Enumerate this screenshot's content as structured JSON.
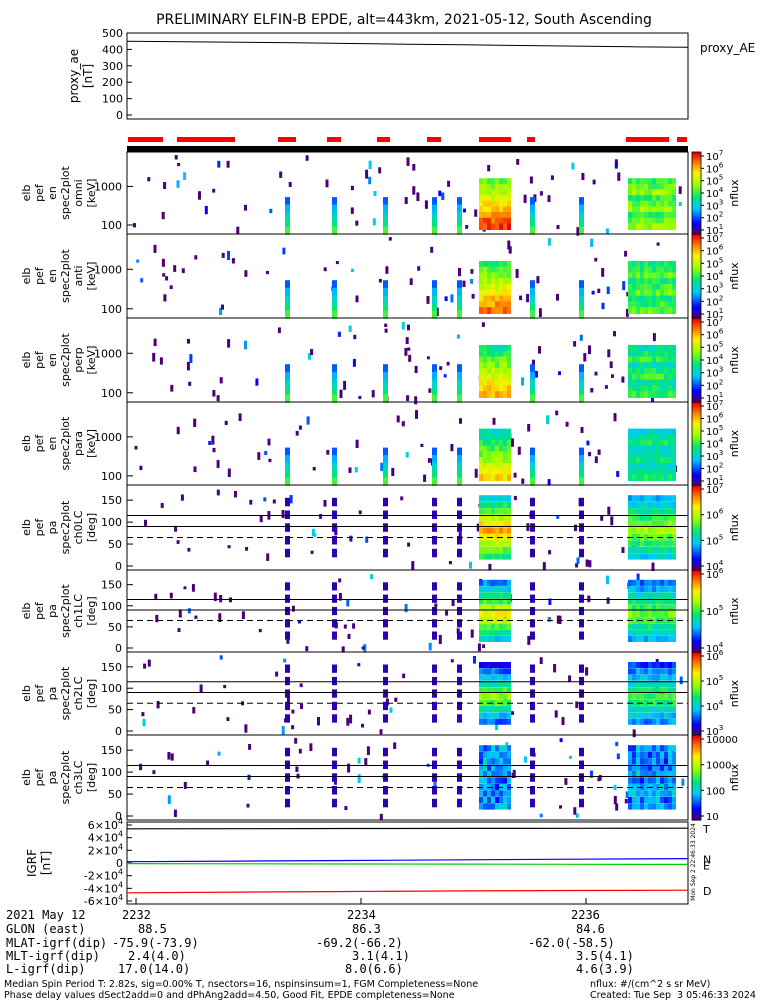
{
  "title": "PRELIMINARY ELFIN-B EPDE, alt=443km, 2021-05-12, South Ascending",
  "chart_data": [
    {
      "type": "line",
      "panel": "proxy_ae",
      "ylabel_lines": [
        "proxy_ae",
        "[nT]"
      ],
      "legend": "proxy_AE",
      "ylim": [
        0,
        500
      ],
      "yticks": [
        "0",
        "100",
        "200",
        "300",
        "400",
        "500"
      ],
      "series": [
        {
          "values": [
            450,
            447,
            444,
            440,
            436,
            432,
            428,
            424,
            420,
            416,
            413
          ]
        }
      ]
    },
    {
      "type": "heatmap",
      "panel": "omni",
      "ylabel_lines": [
        "elb",
        "pef",
        "en",
        "spec2plot",
        "omni",
        "[keV]"
      ],
      "yticks": [
        "100",
        "1000"
      ],
      "colorbar": {
        "label": "nflux",
        "ticks": [
          "10^1",
          "10^2",
          "10^3",
          "10^4",
          "10^5",
          "10^6",
          "10^7"
        ]
      }
    },
    {
      "type": "heatmap",
      "panel": "anti",
      "ylabel_lines": [
        "elb",
        "pef",
        "en",
        "spec2plot",
        "anti",
        "[keV]"
      ],
      "yticks": [
        "100",
        "1000"
      ],
      "colorbar": {
        "label": "nflux",
        "ticks": [
          "10^1",
          "10^2",
          "10^3",
          "10^4",
          "10^5",
          "10^6",
          "10^7"
        ]
      }
    },
    {
      "type": "heatmap",
      "panel": "perp",
      "ylabel_lines": [
        "elb",
        "pef",
        "en",
        "spec2plot",
        "perp",
        "[keV]"
      ],
      "yticks": [
        "100",
        "1000"
      ],
      "colorbar": {
        "label": "nflux",
        "ticks": [
          "10^1",
          "10^2",
          "10^3",
          "10^4",
          "10^5",
          "10^6",
          "10^7"
        ]
      }
    },
    {
      "type": "heatmap",
      "panel": "para",
      "ylabel_lines": [
        "elb",
        "pef",
        "en",
        "spec2plot",
        "para",
        "[keV]"
      ],
      "yticks": [
        "100",
        "1000"
      ],
      "colorbar": {
        "label": "nflux",
        "ticks": [
          "10^1",
          "10^2",
          "10^3",
          "10^4",
          "10^5",
          "10^6",
          "10^7"
        ]
      }
    },
    {
      "type": "heatmap",
      "panel": "ch0LC",
      "ylabel_lines": [
        "elb",
        "pef",
        "pa",
        "spec2plot",
        "ch0LC",
        "[deg]"
      ],
      "yticks": [
        "0",
        "50",
        "100",
        "150"
      ],
      "colorbar": {
        "label": "nflux",
        "ticks": [
          "10^4",
          "10^5",
          "10^6",
          "10^7"
        ]
      }
    },
    {
      "type": "heatmap",
      "panel": "ch1LC",
      "ylabel_lines": [
        "elb",
        "pef",
        "pa",
        "spec2plot",
        "ch1LC",
        "[deg]"
      ],
      "yticks": [
        "0",
        "50",
        "100",
        "150"
      ],
      "colorbar": {
        "label": "nflux",
        "ticks": [
          "10^4",
          "10^5",
          "10^6"
        ]
      }
    },
    {
      "type": "heatmap",
      "panel": "ch2LC",
      "ylabel_lines": [
        "elb",
        "pef",
        "pa",
        "spec2plot",
        "ch2LC",
        "[deg]"
      ],
      "yticks": [
        "0",
        "50",
        "100",
        "150"
      ],
      "colorbar": {
        "label": "nflux",
        "ticks": [
          "10^3",
          "10^4",
          "10^5",
          "10^6"
        ]
      }
    },
    {
      "type": "heatmap",
      "panel": "ch3LC",
      "ylabel_lines": [
        "elb",
        "pef",
        "pa",
        "spec2plot",
        "ch3LC",
        "[deg]"
      ],
      "yticks": [
        "0",
        "50",
        "100",
        "150"
      ],
      "colorbar": {
        "label": "nflux",
        "ticks": [
          "10",
          "100",
          "1000",
          "10000"
        ]
      }
    },
    {
      "type": "line",
      "panel": "IGRF",
      "ylabel_lines": [
        "IGRF",
        "[nT]"
      ],
      "ylim": [
        -60000,
        60000
      ],
      "yticks": [
        "-6×10^4",
        "-4×10^4",
        "-2×10^4",
        "0",
        "2×10^4",
        "4×10^4",
        "6×10^4"
      ],
      "series": [
        {
          "name": "T",
          "color": "#000000",
          "values": [
            54000,
            54200,
            54400,
            54600,
            54800,
            55000
          ]
        },
        {
          "name": "N",
          "color": "#0000ff",
          "values": [
            2000,
            3000,
            4000,
            5000,
            6000,
            7000
          ]
        },
        {
          "name": "E",
          "color": "#00cc00",
          "values": [
            -1000,
            -1200,
            -1500,
            -1800,
            -2000,
            -2200
          ]
        },
        {
          "name": "D",
          "color": "#ff0000",
          "values": [
            -47000,
            -46000,
            -45000,
            -44000,
            -43500,
            -43000
          ]
        }
      ]
    }
  ],
  "xaxis": {
    "date": "2021 May 12",
    "tick_labels": [
      "2232",
      "2234",
      "2236"
    ],
    "rows": [
      {
        "label": "GLON (east)",
        "values": [
          "88.5",
          "86.3",
          "84.6"
        ]
      },
      {
        "label": "MLAT-igrf(dip)",
        "values": [
          "-75.9(-73.9)",
          "-69.2(-66.2)",
          "-62.0(-58.5)"
        ]
      },
      {
        "label": "MLT-igrf(dip)",
        "values": [
          "2.4(4.0)",
          "3.1(4.1)",
          "3.5(4.1)"
        ]
      },
      {
        "label": "L-igrf(dip)",
        "values": [
          "17.0(14.0)",
          "8.0(6.6)",
          "4.6(3.9)"
        ]
      }
    ]
  },
  "stamp": "Mon Sep  2 22:46:33 2024",
  "footer": {
    "line1": "Median Spin Period T: 2.82s, sig=0.00% T, nsectors=16, nspinsinsum=1, FGM Completeness=None",
    "line2": "Phase delay values dSect2add=0 and dPhAng2add=4.50, Good Fit, EPDE completeness=None",
    "units": "nflux: #/(cm^2 s sr MeV)",
    "created": "Created: Tue Sep  3 05:46:33 2024"
  }
}
